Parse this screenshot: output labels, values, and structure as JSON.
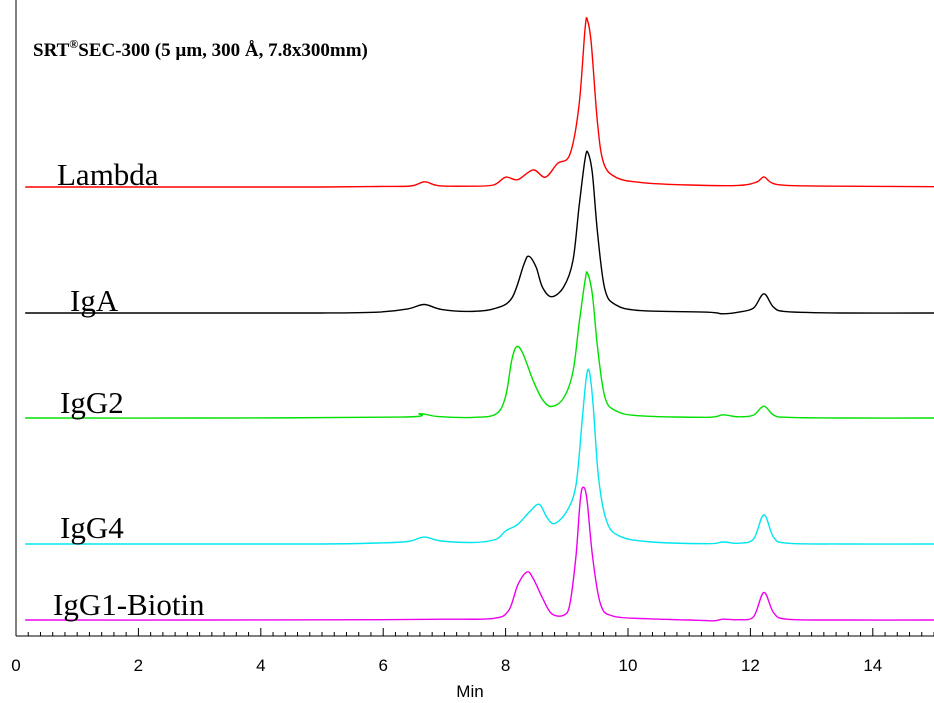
{
  "chart_data": {
    "type": "line",
    "title": {
      "prefix": "SRT",
      "superscript": "®",
      "suffix": "SEC-300 (5 µm, 300 Å, 7.8x300mm)"
    },
    "xlabel": "Min",
    "ylabel": "",
    "xlim": [
      0,
      15
    ],
    "x_ticks": [
      0,
      2,
      4,
      6,
      8,
      10,
      12,
      14
    ],
    "x_minor_step": 0.2,
    "grid": false,
    "legend": "none",
    "series": [
      {
        "name": "Lambda",
        "color": "#ff0000",
        "points": [
          [
            0.15,
            0
          ],
          [
            3,
            0
          ],
          [
            5,
            0
          ],
          [
            5.9,
            0.03
          ],
          [
            6.45,
            0.06
          ],
          [
            6.68,
            0.32
          ],
          [
            6.9,
            0.08
          ],
          [
            7.4,
            0.05
          ],
          [
            7.8,
            0.12
          ],
          [
            8.0,
            0.6
          ],
          [
            8.2,
            0.45
          ],
          [
            8.45,
            1.05
          ],
          [
            8.65,
            0.6
          ],
          [
            8.85,
            1.45
          ],
          [
            9.05,
            2.0
          ],
          [
            9.2,
            5.0
          ],
          [
            9.3,
            9.8
          ],
          [
            9.34,
            10.2
          ],
          [
            9.4,
            8.8
          ],
          [
            9.5,
            4.0
          ],
          [
            9.6,
            1.5
          ],
          [
            9.8,
            0.6
          ],
          [
            10.2,
            0.28
          ],
          [
            11,
            0.12
          ],
          [
            11.8,
            0.1
          ],
          [
            12.1,
            0.3
          ],
          [
            12.22,
            0.62
          ],
          [
            12.35,
            0.25
          ],
          [
            12.6,
            0.1
          ],
          [
            13.5,
            0.05
          ],
          [
            15,
            0.02
          ]
        ]
      },
      {
        "name": "IgA",
        "color": "#000000",
        "points": [
          [
            0.15,
            0
          ],
          [
            3,
            0
          ],
          [
            5,
            0
          ],
          [
            5.9,
            0.05
          ],
          [
            6.4,
            0.25
          ],
          [
            6.67,
            0.52
          ],
          [
            6.95,
            0.22
          ],
          [
            7.4,
            0.1
          ],
          [
            7.8,
            0.25
          ],
          [
            8.1,
            0.9
          ],
          [
            8.3,
            3.0
          ],
          [
            8.38,
            3.48
          ],
          [
            8.5,
            2.8
          ],
          [
            8.6,
            1.6
          ],
          [
            8.75,
            1.0
          ],
          [
            8.95,
            1.6
          ],
          [
            9.1,
            3.2
          ],
          [
            9.2,
            6.5
          ],
          [
            9.3,
            9.5
          ],
          [
            9.35,
            9.8
          ],
          [
            9.42,
            8.5
          ],
          [
            9.5,
            5.0
          ],
          [
            9.62,
            1.5
          ],
          [
            9.8,
            0.5
          ],
          [
            10.2,
            0.15
          ],
          [
            11.3,
            0.05
          ],
          [
            11.55,
            -0.05
          ],
          [
            11.8,
            0.05
          ],
          [
            12.05,
            0.3
          ],
          [
            12.22,
            1.18
          ],
          [
            12.38,
            0.35
          ],
          [
            12.6,
            0.08
          ],
          [
            13.5,
            0
          ],
          [
            15,
            0
          ]
        ]
      },
      {
        "name": "IgG2",
        "color": "#00e000",
        "points": [
          [
            0.15,
            0
          ],
          [
            3,
            0
          ],
          [
            6.3,
            0.06
          ],
          [
            6.6,
            0.3
          ],
          [
            6.9,
            0.1
          ],
          [
            7.5,
            0.05
          ],
          [
            7.85,
            0.3
          ],
          [
            8.0,
            1.5
          ],
          [
            8.1,
            4.0
          ],
          [
            8.18,
            4.95
          ],
          [
            8.28,
            4.5
          ],
          [
            8.45,
            2.6
          ],
          [
            8.6,
            1.3
          ],
          [
            8.75,
            0.8
          ],
          [
            8.95,
            1.4
          ],
          [
            9.1,
            3.2
          ],
          [
            9.2,
            6.5
          ],
          [
            9.3,
            9.6
          ],
          [
            9.34,
            10.05
          ],
          [
            9.42,
            8.5
          ],
          [
            9.5,
            5.0
          ],
          [
            9.62,
            1.5
          ],
          [
            9.8,
            0.5
          ],
          [
            10.2,
            0.15
          ],
          [
            11.3,
            0.05
          ],
          [
            11.55,
            0.22
          ],
          [
            11.8,
            0.08
          ],
          [
            12.05,
            0.2
          ],
          [
            12.22,
            0.82
          ],
          [
            12.38,
            0.2
          ],
          [
            12.6,
            0.05
          ],
          [
            13.5,
            0
          ],
          [
            15,
            0
          ]
        ]
      },
      {
        "name": "IgG4",
        "color": "#00e5ee",
        "points": [
          [
            0.15,
            0
          ],
          [
            3,
            0
          ],
          [
            5,
            0
          ],
          [
            5.9,
            0.06
          ],
          [
            6.4,
            0.15
          ],
          [
            6.67,
            0.42
          ],
          [
            6.95,
            0.18
          ],
          [
            7.5,
            0.1
          ],
          [
            7.85,
            0.3
          ],
          [
            8.0,
            0.8
          ],
          [
            8.2,
            1.2
          ],
          [
            8.4,
            2.0
          ],
          [
            8.55,
            2.42
          ],
          [
            8.68,
            1.6
          ],
          [
            8.8,
            1.25
          ],
          [
            9.0,
            2.0
          ],
          [
            9.15,
            3.6
          ],
          [
            9.25,
            7.5
          ],
          [
            9.32,
            10.2
          ],
          [
            9.37,
            10.5
          ],
          [
            9.43,
            8.5
          ],
          [
            9.52,
            4.0
          ],
          [
            9.65,
            1.4
          ],
          [
            9.85,
            0.5
          ],
          [
            10.3,
            0.15
          ],
          [
            11.3,
            0.02
          ],
          [
            11.55,
            0.12
          ],
          [
            11.8,
            0.05
          ],
          [
            12.05,
            0.3
          ],
          [
            12.22,
            1.78
          ],
          [
            12.38,
            0.4
          ],
          [
            12.6,
            0.05
          ],
          [
            13.5,
            0
          ],
          [
            15,
            0
          ]
        ]
      },
      {
        "name": "IgG1-Biotin",
        "color": "#ee00ee",
        "points": [
          [
            0.15,
            0
          ],
          [
            3,
            0
          ],
          [
            6,
            0.02
          ],
          [
            7,
            0.05
          ],
          [
            7.8,
            0.1
          ],
          [
            8.05,
            0.6
          ],
          [
            8.2,
            2.2
          ],
          [
            8.35,
            3.0
          ],
          [
            8.45,
            2.6
          ],
          [
            8.6,
            1.4
          ],
          [
            8.75,
            0.4
          ],
          [
            8.95,
            0.3
          ],
          [
            9.05,
            1.0
          ],
          [
            9.15,
            4.0
          ],
          [
            9.22,
            7.5
          ],
          [
            9.27,
            8.3
          ],
          [
            9.33,
            7.5
          ],
          [
            9.42,
            4.0
          ],
          [
            9.55,
            1.0
          ],
          [
            9.75,
            0.25
          ],
          [
            10.3,
            0.08
          ],
          [
            11.0,
            0
          ],
          [
            11.4,
            -0.05
          ],
          [
            11.55,
            0.05
          ],
          [
            11.8,
            0.02
          ],
          [
            12.05,
            0.2
          ],
          [
            12.22,
            1.72
          ],
          [
            12.38,
            0.45
          ],
          [
            12.6,
            0.05
          ],
          [
            13.5,
            0
          ],
          [
            15,
            0
          ]
        ]
      }
    ]
  }
}
